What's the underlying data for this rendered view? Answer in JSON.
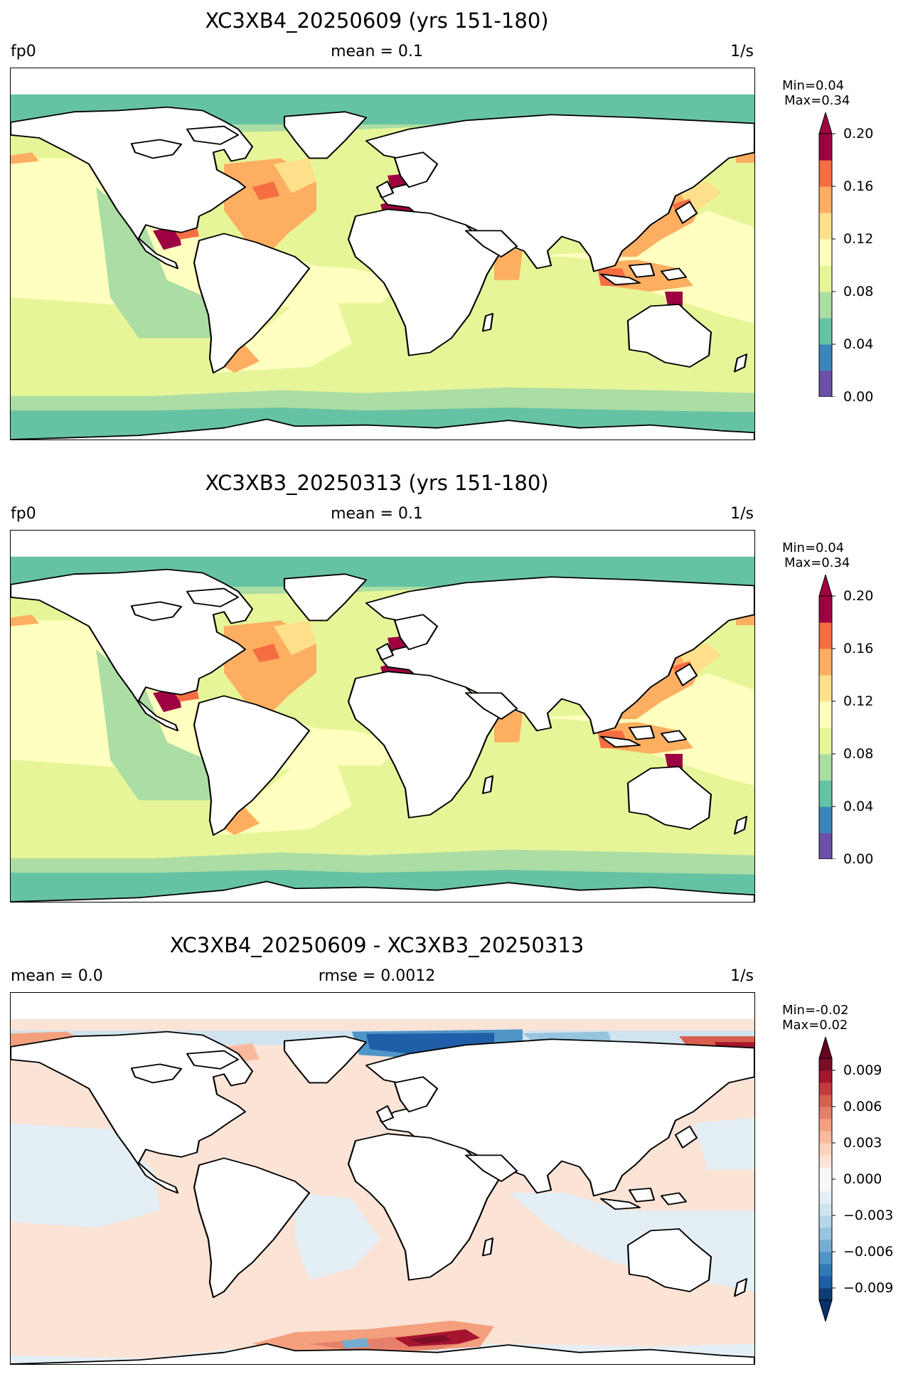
{
  "panels": [
    {
      "title": "XC3XB4_20250609 (yrs 151-180)",
      "left_label": "fp0",
      "center_label": "mean = 0.1",
      "right_label": "1/s",
      "min_text": "Min=0.04",
      "max_text": "Max=0.34",
      "colorbar": {
        "ticks": [
          "0.00",
          "0.04",
          "0.08",
          "0.12",
          "0.16",
          "0.20"
        ],
        "colors": [
          "#6c4fa6",
          "#3a86bd",
          "#66c2a5",
          "#abdda4",
          "#e6f598",
          "#ffffbf",
          "#fee08b",
          "#fdae61",
          "#f46d43",
          "#9e0142"
        ],
        "range": [
          0,
          0.2
        ],
        "extend": "max",
        "extend_color": "#9e0142"
      }
    },
    {
      "title": "XC3XB3_20250313 (yrs 151-180)",
      "left_label": "fp0",
      "center_label": "mean = 0.1",
      "right_label": "1/s",
      "min_text": "Min=0.04",
      "max_text": "Max=0.34",
      "colorbar": {
        "ticks": [
          "0.00",
          "0.04",
          "0.08",
          "0.12",
          "0.16",
          "0.20"
        ],
        "colors": [
          "#6c4fa6",
          "#3a86bd",
          "#66c2a5",
          "#abdda4",
          "#e6f598",
          "#ffffbf",
          "#fee08b",
          "#fdae61",
          "#f46d43",
          "#9e0142"
        ],
        "range": [
          0,
          0.2
        ],
        "extend": "max",
        "extend_color": "#9e0142"
      }
    },
    {
      "title": "XC3XB4_20250609 - XC3XB3_20250313",
      "left_label": "mean = 0.0",
      "center_label": "rmse = 0.0012",
      "right_label": "1/s",
      "min_text": "Min=-0.02",
      "max_text": "Max=0.02",
      "colorbar": {
        "ticks": [
          "−0.009",
          "−0.006",
          "−0.003",
          "0.000",
          "0.003",
          "0.006",
          "0.009"
        ],
        "colors": [
          "#0e3d75",
          "#1f5ea8",
          "#2f79b5",
          "#4f95c6",
          "#74add1",
          "#97c4df",
          "#b5d5e8",
          "#d0e4ef",
          "#e4eef5",
          "#f7f7f7",
          "#f7f7f7",
          "#fbe3d6",
          "#fcd3bd",
          "#f9b99c",
          "#f4a07f",
          "#e7806a",
          "#d6604d",
          "#c13a3d",
          "#a5152e",
          "#7d0c26"
        ],
        "range": [
          -0.01,
          0.01
        ],
        "extend": "both",
        "extend_color_low": "#08306b",
        "extend_color_high": "#67001f"
      }
    }
  ]
}
